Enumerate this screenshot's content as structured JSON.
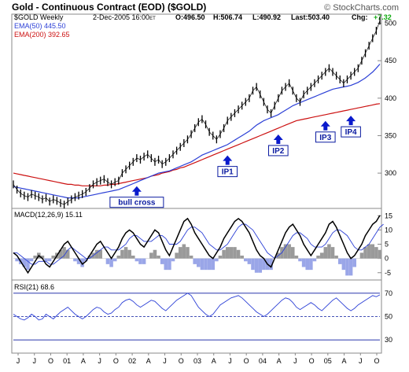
{
  "header": {
    "title": "Gold - Continuous Contract (EOD) ($GOLD)",
    "watermark": "© StockCharts.com",
    "symbol_line": "$GOLD Weekly",
    "date_line": "2-Dec-2005 16:00",
    "date_suffix": "ET",
    "ohlc": {
      "o": "O:496.50",
      "h": "H:506.74",
      "l": "L:490.92",
      "last": "Last:503.40",
      "chg_label": "Chg:",
      "chg_value": "+7.32"
    },
    "ema50": "EMA(50) 445.50",
    "ema200": "EMA(200) 392.65"
  },
  "colors": {
    "price": "#000000",
    "ema50": "#2b3fd6",
    "ema200": "#cc1111",
    "frame": "#8a8a8a",
    "hist": "#9aa6e8",
    "hist_pos": "#9a9a9a",
    "annotation_bg": "#ffffff",
    "annotation_border": "#0a1aa0",
    "arrow": "#0a1acc",
    "rsi": "#2b3fd6",
    "chg": "#11aa11"
  },
  "chart_data": [
    {
      "type": "line",
      "title": "Gold - Continuous Contract (EOD) ($GOLD)",
      "x_labels": [
        "J",
        "J",
        "O",
        "01",
        "A",
        "J",
        "O",
        "02",
        "A",
        "J",
        "O",
        "03",
        "A",
        "J",
        "O",
        "04",
        "A",
        "J",
        "O",
        "05",
        "A",
        "J",
        "O"
      ],
      "y_ticks": [
        300,
        350,
        400,
        450,
        500
      ],
      "ylim": [
        255,
        510
      ],
      "series": [
        {
          "name": "$GOLD Weekly",
          "values": [
            285,
            278,
            273,
            270,
            268,
            272,
            270,
            268,
            265,
            267,
            262,
            265,
            263,
            260,
            258,
            262,
            265,
            268,
            270,
            272,
            275,
            280,
            285,
            288,
            290,
            292,
            288,
            285,
            288,
            290,
            300,
            305,
            310,
            315,
            320,
            318,
            322,
            325,
            320,
            315,
            318,
            312,
            315,
            320,
            325,
            330,
            335,
            340,
            345,
            352,
            360,
            368,
            372,
            365,
            355,
            350,
            345,
            352,
            360,
            370,
            375,
            380,
            385,
            390,
            395,
            400,
            410,
            415,
            405,
            395,
            385,
            380,
            390,
            400,
            410,
            415,
            420,
            410,
            400,
            395,
            405,
            410,
            415,
            420,
            425,
            430,
            435,
            440,
            435,
            430,
            425,
            420,
            425,
            430,
            435,
            440,
            450,
            460,
            470,
            480,
            490,
            503.4
          ]
        },
        {
          "name": "EMA(50)",
          "values": [
            282,
            281,
            280,
            279,
            278,
            277,
            276,
            275,
            274,
            273,
            272,
            271,
            270,
            269,
            268,
            267,
            267,
            267,
            267,
            268,
            269,
            270,
            271,
            272,
            273,
            274,
            275,
            276,
            277,
            278,
            280,
            282,
            284,
            286,
            288,
            290,
            292,
            294,
            296,
            298,
            300,
            301,
            302,
            303,
            305,
            307,
            309,
            311,
            313,
            315,
            318,
            321,
            324,
            326,
            328,
            330,
            332,
            334,
            336,
            338,
            341,
            344,
            347,
            350,
            353,
            356,
            360,
            364,
            367,
            370,
            372,
            374,
            376,
            378,
            381,
            384,
            387,
            390,
            392,
            394,
            396,
            398,
            400,
            402,
            404,
            406,
            408,
            410,
            412,
            413,
            414,
            415,
            416,
            417,
            419,
            421,
            424,
            427,
            431,
            435,
            440,
            445.5
          ]
        },
        {
          "name": "EMA(200)",
          "values": [
            300,
            299,
            298,
            297,
            296,
            295,
            294,
            293,
            292,
            291,
            290,
            289,
            288,
            287,
            286,
            285,
            285,
            284,
            284,
            283,
            283,
            283,
            283,
            283,
            283,
            284,
            284,
            285,
            285,
            286,
            287,
            288,
            289,
            290,
            291,
            292,
            293,
            294,
            296,
            297,
            298,
            300,
            301,
            302,
            304,
            305,
            307,
            308,
            310,
            312,
            314,
            316,
            318,
            320,
            322,
            324,
            326,
            328,
            330,
            332,
            334,
            336,
            338,
            340,
            342,
            344,
            346,
            348,
            350,
            352,
            354,
            356,
            358,
            360,
            362,
            364,
            366,
            368,
            370,
            371,
            372,
            373,
            374,
            375,
            376,
            377,
            378,
            379,
            380,
            381,
            382,
            383,
            384,
            385,
            386,
            387,
            388,
            389,
            390,
            391,
            392,
            392.65
          ]
        }
      ],
      "annotations": [
        {
          "label": "bull cross",
          "index": 34
        },
        {
          "label": "IP1",
          "index": 59
        },
        {
          "label": "IP2",
          "index": 73
        },
        {
          "label": "IP3",
          "index": 86
        },
        {
          "label": "IP4",
          "index": 93
        }
      ]
    },
    {
      "type": "line",
      "title": "MACD(12,26,9)",
      "value_label": "15.11",
      "y_ticks": [
        -5,
        0,
        5,
        10,
        15
      ],
      "ylim": [
        -7,
        17
      ],
      "series": [
        {
          "name": "MACD(12,26,9)",
          "values": [
            2,
            1,
            -1,
            -3,
            -5,
            -3,
            -1,
            1,
            0,
            -2,
            -3,
            -1,
            1,
            3,
            5,
            6,
            4,
            2,
            0,
            -2,
            -1,
            1,
            3,
            5,
            6,
            4,
            2,
            0,
            2,
            4,
            7,
            9,
            10,
            9,
            7,
            5,
            4,
            6,
            8,
            10,
            9,
            6,
            3,
            1,
            4,
            7,
            10,
            13,
            14,
            12,
            9,
            7,
            5,
            3,
            1,
            0,
            2,
            4,
            7,
            9,
            11,
            13,
            14,
            13,
            11,
            9,
            6,
            3,
            1,
            0,
            -2,
            -3,
            0,
            3,
            6,
            9,
            11,
            12,
            10,
            8,
            5,
            3,
            1,
            3,
            5,
            7,
            9,
            12,
            13,
            11,
            8,
            5,
            2,
            0,
            1,
            3,
            5,
            8,
            10,
            12,
            13,
            15.11
          ]
        },
        {
          "name": "Signal",
          "values": [
            2,
            2,
            1,
            0,
            -1,
            -2,
            -2,
            -1,
            -1,
            -1,
            -2,
            -2,
            -1,
            0,
            1,
            3,
            4,
            3,
            2,
            1,
            0,
            0,
            1,
            2,
            3,
            4,
            4,
            3,
            3,
            3,
            4,
            5,
            7,
            8,
            8,
            7,
            6,
            6,
            6,
            7,
            8,
            8,
            7,
            5,
            5,
            5,
            6,
            8,
            10,
            11,
            11,
            10,
            9,
            7,
            5,
            4,
            3,
            3,
            4,
            5,
            7,
            9,
            11,
            12,
            12,
            11,
            10,
            8,
            6,
            4,
            2,
            1,
            0,
            1,
            2,
            4,
            6,
            8,
            9,
            9,
            8,
            7,
            5,
            4,
            4,
            4,
            5,
            7,
            9,
            10,
            10,
            9,
            8,
            6,
            4,
            3,
            3,
            4,
            5,
            7,
            9,
            11,
            12
          ]
        },
        {
          "name": "Histogram",
          "values": [
            0,
            -1,
            -2,
            -3,
            -4,
            -1,
            1,
            2,
            1,
            -1,
            -1,
            1,
            2,
            3,
            4,
            3,
            0,
            -1,
            -2,
            -3,
            -1,
            1,
            2,
            3,
            3,
            0,
            -2,
            -3,
            -1,
            1,
            3,
            4,
            3,
            1,
            -1,
            -2,
            -2,
            0,
            2,
            3,
            1,
            -2,
            -4,
            -4,
            -1,
            2,
            4,
            5,
            4,
            1,
            -2,
            -3,
            -4,
            -4,
            -4,
            -4,
            -1,
            1,
            3,
            4,
            4,
            4,
            3,
            1,
            -1,
            -2,
            -4,
            -5,
            -5,
            -4,
            -4,
            -4,
            0,
            2,
            4,
            5,
            5,
            4,
            1,
            -1,
            -3,
            -4,
            -4,
            -1,
            1,
            2,
            4,
            5,
            4,
            1,
            -2,
            -4,
            -6,
            -6,
            -3,
            0,
            2,
            4,
            5,
            5,
            4,
            3
          ]
        }
      ]
    },
    {
      "type": "line",
      "title": "RSI(21)",
      "value_label": "68.6",
      "y_ticks": [
        30,
        50,
        70
      ],
      "ylim": [
        20,
        80
      ],
      "reference_lines": [
        70,
        50,
        30
      ],
      "series": [
        {
          "name": "RSI(21)",
          "values": [
            52,
            50,
            48,
            47,
            49,
            52,
            50,
            47,
            48,
            52,
            50,
            48,
            51,
            54,
            56,
            58,
            55,
            52,
            50,
            48,
            50,
            53,
            56,
            58,
            57,
            54,
            52,
            53,
            56,
            58,
            62,
            64,
            65,
            63,
            60,
            58,
            60,
            62,
            64,
            63,
            60,
            57,
            55,
            58,
            61,
            64,
            66,
            68,
            70,
            68,
            63,
            58,
            55,
            52,
            50,
            52,
            56,
            60,
            62,
            64,
            66,
            67,
            68,
            66,
            63,
            60,
            57,
            54,
            52,
            50,
            52,
            55,
            58,
            61,
            64,
            66,
            65,
            62,
            58,
            56,
            58,
            60,
            62,
            60,
            57,
            55,
            58,
            61,
            64,
            66,
            63,
            60,
            57,
            55,
            57,
            60,
            62,
            64,
            66,
            68,
            67,
            68.6
          ]
        }
      ]
    }
  ]
}
